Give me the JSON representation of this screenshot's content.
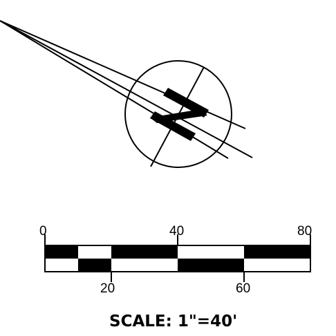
{
  "north_arrow": {
    "icon": "north-arrow-icon",
    "letter": "N"
  },
  "scale_bar": {
    "top_labels": [
      "0",
      "40",
      "80"
    ],
    "bottom_labels": [
      "20",
      "60"
    ],
    "caption": "SCALE: 1\"=40'"
  },
  "colors": {
    "ink": "#000000",
    "paper": "#ffffff"
  }
}
